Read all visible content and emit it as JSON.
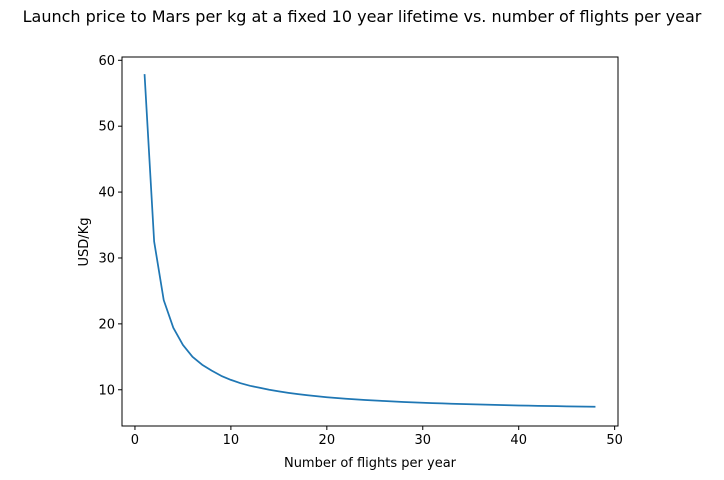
{
  "chart_data": {
    "type": "line",
    "title": "Launch price to Mars per kg at a fixed 10 year lifetime vs. number of flights per year",
    "xlabel": "Number of flights per year",
    "ylabel": "USD/Kg",
    "xlim": [
      -1.35,
      50.35
    ],
    "ylim": [
      4.5,
      60.5
    ],
    "xticks": [
      0,
      10,
      20,
      30,
      40,
      50
    ],
    "yticks": [
      10,
      20,
      30,
      40,
      50,
      60
    ],
    "grid": false,
    "line_color": "#1f77b4",
    "series": [
      {
        "x": [
          1,
          2,
          3,
          4,
          5,
          6,
          7,
          8,
          9,
          10,
          11,
          12,
          13,
          14,
          15,
          16,
          17,
          18,
          19,
          20,
          21,
          22,
          23,
          24,
          25,
          26,
          27,
          28,
          29,
          30,
          31,
          32,
          33,
          34,
          35,
          36,
          37,
          38,
          39,
          40,
          41,
          42,
          43,
          44,
          45,
          46,
          47,
          48
        ],
        "values": [
          57.9,
          32.5,
          23.6,
          19.4,
          16.8,
          15.0,
          13.8,
          12.9,
          12.1,
          11.5,
          11.0,
          10.6,
          10.3,
          10.0,
          9.75,
          9.53,
          9.33,
          9.16,
          9.01,
          8.87,
          8.75,
          8.64,
          8.54,
          8.45,
          8.37,
          8.29,
          8.22,
          8.15,
          8.09,
          8.03,
          7.98,
          7.93,
          7.88,
          7.84,
          7.8,
          7.76,
          7.72,
          7.68,
          7.65,
          7.62,
          7.59,
          7.56,
          7.53,
          7.51,
          7.48,
          7.46,
          7.44,
          7.42
        ]
      }
    ]
  }
}
